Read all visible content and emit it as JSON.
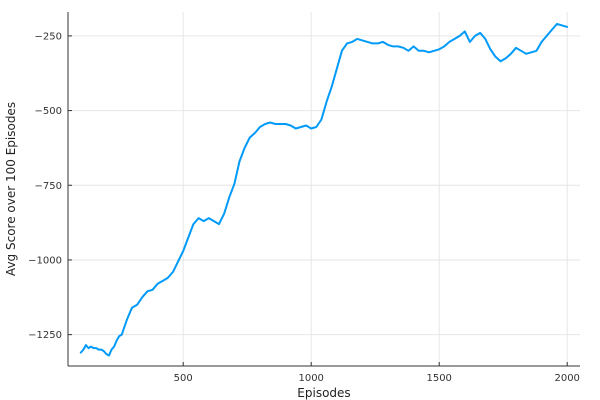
{
  "chart_data": {
    "type": "line",
    "title": "",
    "xlabel": "Episodes",
    "ylabel": "Avg Score over 100 Episodes",
    "xlim": [
      50,
      2050
    ],
    "ylim": [
      -1355,
      -170
    ],
    "xticks": [
      500,
      1000,
      1500,
      2000
    ],
    "yticks": [
      -1250,
      -1000,
      -750,
      -500,
      -250
    ],
    "xtick_labels": [
      "500",
      "1000",
      "1500",
      "2000"
    ],
    "ytick_labels": [
      "−1250",
      "−1000",
      "−750",
      "−500",
      "−250"
    ],
    "grid": true,
    "legend": "none",
    "series": [
      {
        "color": "#009af9",
        "x": [
          100,
          110,
          120,
          130,
          140,
          150,
          160,
          170,
          180,
          190,
          200,
          210,
          220,
          230,
          240,
          250,
          260,
          270,
          280,
          290,
          300,
          320,
          340,
          360,
          380,
          400,
          420,
          440,
          460,
          480,
          500,
          520,
          540,
          560,
          580,
          600,
          620,
          640,
          660,
          680,
          700,
          720,
          740,
          760,
          780,
          800,
          820,
          840,
          860,
          880,
          900,
          920,
          940,
          960,
          980,
          1000,
          1020,
          1040,
          1060,
          1080,
          1100,
          1120,
          1140,
          1160,
          1180,
          1200,
          1220,
          1240,
          1260,
          1280,
          1300,
          1320,
          1340,
          1360,
          1380,
          1400,
          1420,
          1440,
          1460,
          1480,
          1500,
          1520,
          1540,
          1560,
          1580,
          1600,
          1620,
          1640,
          1660,
          1680,
          1700,
          1720,
          1740,
          1760,
          1780,
          1800,
          1820,
          1840,
          1860,
          1880,
          1900,
          1920,
          1940,
          1960,
          1980,
          2000
        ],
        "y": [
          -1310,
          -1300,
          -1285,
          -1295,
          -1290,
          -1295,
          -1295,
          -1300,
          -1300,
          -1305,
          -1315,
          -1320,
          -1300,
          -1290,
          -1270,
          -1255,
          -1250,
          -1225,
          -1200,
          -1180,
          -1160,
          -1150,
          -1125,
          -1105,
          -1100,
          -1080,
          -1070,
          -1060,
          -1040,
          -1005,
          -970,
          -925,
          -880,
          -860,
          -870,
          -860,
          -870,
          -880,
          -845,
          -790,
          -745,
          -670,
          -625,
          -590,
          -575,
          -555,
          -545,
          -540,
          -545,
          -545,
          -545,
          -550,
          -560,
          -555,
          -550,
          -560,
          -555,
          -530,
          -470,
          -420,
          -360,
          -300,
          -275,
          -270,
          -260,
          -265,
          -270,
          -275,
          -275,
          -270,
          -280,
          -285,
          -285,
          -290,
          -300,
          -285,
          -300,
          -300,
          -305,
          -300,
          -295,
          -285,
          -270,
          -260,
          -250,
          -235,
          -270,
          -250,
          -240,
          -260,
          -295,
          -320,
          -335,
          -325,
          -310,
          -290,
          -300,
          -310,
          -305,
          -300,
          -270,
          -250,
          -230,
          -210,
          -215,
          -220
        ]
      }
    ]
  }
}
